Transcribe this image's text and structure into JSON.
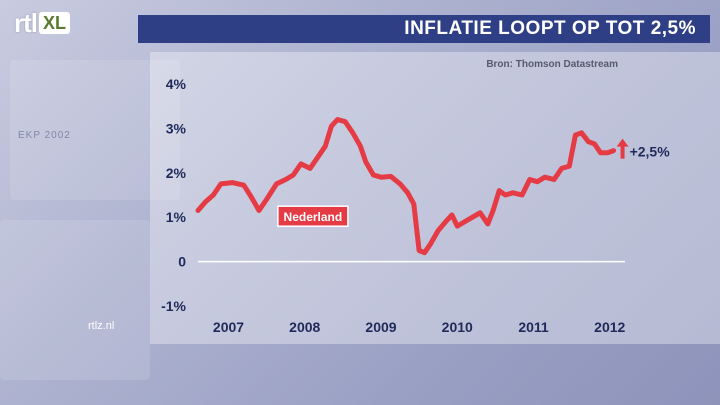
{
  "header": {
    "logo_main": "rtl",
    "logo_sub": "XL",
    "title": "INFLATIE LOOPT OP TOT 2,5%"
  },
  "source": "Bron: Thomson Datastream",
  "watermark": "rtlz.nl",
  "background_text": "EKP 2002",
  "chart_data": {
    "type": "line",
    "title": "INFLATIE LOOPT OP TOT 2,5%",
    "xlabel": "",
    "ylabel": "",
    "xlim": [
      2006.85,
      2012.45
    ],
    "ylim": [
      -1,
      4
    ],
    "yticks": [
      {
        "value": 4,
        "label": "4%"
      },
      {
        "value": 3,
        "label": "3%"
      },
      {
        "value": 2,
        "label": "2%"
      },
      {
        "value": 1,
        "label": "1%"
      },
      {
        "value": 0,
        "label": "0"
      },
      {
        "value": -1,
        "label": "-1%"
      }
    ],
    "xticks": [
      {
        "value": 2007.25,
        "label": "2007"
      },
      {
        "value": 2008.25,
        "label": "2008"
      },
      {
        "value": 2009.25,
        "label": "2009"
      },
      {
        "value": 2010.25,
        "label": "2010"
      },
      {
        "value": 2011.25,
        "label": "2011"
      },
      {
        "value": 2012.25,
        "label": "2012"
      }
    ],
    "series": [
      {
        "name": "Nederland",
        "color": "#e53b45",
        "points": [
          [
            2006.85,
            1.15
          ],
          [
            2006.95,
            1.35
          ],
          [
            2007.05,
            1.5
          ],
          [
            2007.15,
            1.75
          ],
          [
            2007.3,
            1.78
          ],
          [
            2007.45,
            1.72
          ],
          [
            2007.55,
            1.45
          ],
          [
            2007.65,
            1.15
          ],
          [
            2007.75,
            1.4
          ],
          [
            2007.88,
            1.75
          ],
          [
            2008.0,
            1.85
          ],
          [
            2008.1,
            1.95
          ],
          [
            2008.2,
            2.2
          ],
          [
            2008.32,
            2.1
          ],
          [
            2008.42,
            2.35
          ],
          [
            2008.52,
            2.6
          ],
          [
            2008.6,
            3.05
          ],
          [
            2008.68,
            3.2
          ],
          [
            2008.78,
            3.15
          ],
          [
            2008.88,
            2.9
          ],
          [
            2008.98,
            2.6
          ],
          [
            2009.05,
            2.25
          ],
          [
            2009.15,
            1.95
          ],
          [
            2009.25,
            1.9
          ],
          [
            2009.38,
            1.92
          ],
          [
            2009.5,
            1.75
          ],
          [
            2009.6,
            1.55
          ],
          [
            2009.68,
            1.3
          ],
          [
            2009.75,
            0.25
          ],
          [
            2009.82,
            0.2
          ],
          [
            2009.9,
            0.4
          ],
          [
            2010.0,
            0.7
          ],
          [
            2010.1,
            0.9
          ],
          [
            2010.18,
            1.05
          ],
          [
            2010.25,
            0.8
          ],
          [
            2010.35,
            0.9
          ],
          [
            2010.45,
            1.0
          ],
          [
            2010.55,
            1.1
          ],
          [
            2010.65,
            0.85
          ],
          [
            2010.72,
            1.15
          ],
          [
            2010.8,
            1.6
          ],
          [
            2010.88,
            1.5
          ],
          [
            2010.98,
            1.55
          ],
          [
            2011.1,
            1.5
          ],
          [
            2011.2,
            1.85
          ],
          [
            2011.3,
            1.8
          ],
          [
            2011.4,
            1.9
          ],
          [
            2011.52,
            1.85
          ],
          [
            2011.62,
            2.1
          ],
          [
            2011.72,
            2.15
          ],
          [
            2011.8,
            2.85
          ],
          [
            2011.88,
            2.9
          ],
          [
            2011.97,
            2.7
          ],
          [
            2012.05,
            2.65
          ],
          [
            2012.13,
            2.45
          ],
          [
            2012.22,
            2.45
          ],
          [
            2012.3,
            2.5
          ]
        ]
      }
    ],
    "annotations": [
      {
        "text": "Nederland",
        "x": 2007.95,
        "y": 1.0
      },
      {
        "text": "+2,5%",
        "x": 2012.3,
        "y": 2.5
      }
    ],
    "grid": {
      "zero_line": true
    }
  }
}
